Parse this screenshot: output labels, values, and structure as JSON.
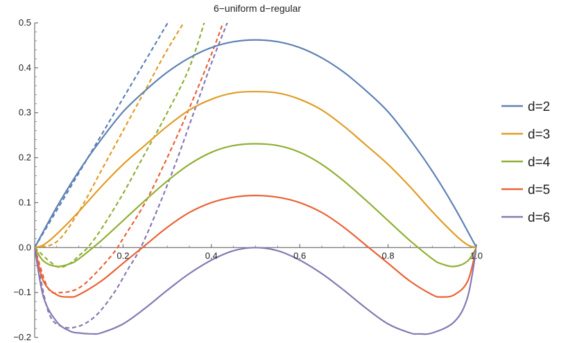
{
  "chart_data": {
    "type": "line",
    "title": "6−uniform d−regular",
    "xlabel": "",
    "ylabel": "",
    "xlim": [
      0,
      1
    ],
    "ylim": [
      -0.2,
      0.5
    ],
    "x_ticks": [
      0.2,
      0.4,
      0.6,
      0.8,
      1.0
    ],
    "x_tick_labels": [
      "0.2",
      "0.4",
      "0.6",
      "0.8",
      "1.0"
    ],
    "y_ticks": [
      -0.2,
      -0.1,
      0.0,
      0.1,
      0.2,
      0.3,
      0.4,
      0.5
    ],
    "y_tick_labels": [
      "−0.2",
      "−0.1",
      "0.0",
      "0.1",
      "0.2",
      "0.3",
      "0.4",
      "0.5"
    ],
    "legend_position": "right",
    "grid": false,
    "series": [
      {
        "name": "d=2",
        "color": "#5E81B5",
        "solid": {
          "x": [
            0,
            0.05,
            0.1,
            0.15,
            0.2,
            0.25,
            0.3,
            0.35,
            0.4,
            0.45,
            0.5,
            0.55,
            0.6,
            0.65,
            0.7,
            0.75,
            0.8,
            0.85,
            0.9,
            0.95,
            1.0
          ],
          "y": [
            0,
            0.09,
            0.17,
            0.24,
            0.302,
            0.349,
            0.39,
            0.422,
            0.445,
            0.458,
            0.462,
            0.458,
            0.445,
            0.422,
            0.39,
            0.349,
            0.302,
            0.24,
            0.17,
            0.09,
            0
          ]
        },
        "dashed": {
          "x": [
            0,
            0.05,
            0.1,
            0.15,
            0.2,
            0.25,
            0.3,
            0.31
          ],
          "y": [
            0,
            0.083,
            0.166,
            0.249,
            0.332,
            0.415,
            0.498,
            0.514
          ]
        }
      },
      {
        "name": "d=3",
        "color": "#E19C24",
        "solid": {
          "x": [
            0,
            0.02,
            0.05,
            0.1,
            0.15,
            0.2,
            0.25,
            0.3,
            0.35,
            0.4,
            0.45,
            0.5,
            0.55,
            0.6,
            0.65,
            0.7,
            0.75,
            0.8,
            0.85,
            0.9,
            0.95,
            0.98,
            1.0
          ],
          "y": [
            0,
            0.006,
            0.03,
            0.08,
            0.135,
            0.185,
            0.228,
            0.27,
            0.306,
            0.33,
            0.344,
            0.347,
            0.344,
            0.33,
            0.306,
            0.27,
            0.228,
            0.185,
            0.135,
            0.08,
            0.03,
            0.006,
            0
          ]
        },
        "dashed": {
          "x": [
            0,
            0.05,
            0.1,
            0.15,
            0.2,
            0.25,
            0.3,
            0.35
          ],
          "y": [
            0,
            0.013,
            0.08,
            0.17,
            0.26,
            0.35,
            0.44,
            0.52
          ]
        }
      },
      {
        "name": "d=4",
        "color": "#8FB032",
        "solid": {
          "x": [
            0,
            0.02,
            0.05,
            0.08,
            0.1,
            0.15,
            0.2,
            0.25,
            0.3,
            0.35,
            0.4,
            0.45,
            0.5,
            0.55,
            0.6,
            0.65,
            0.7,
            0.75,
            0.8,
            0.85,
            0.9,
            0.92,
            0.95,
            0.98,
            1.0
          ],
          "y": [
            0,
            -0.03,
            -0.042,
            -0.036,
            -0.025,
            0.015,
            0.06,
            0.105,
            0.148,
            0.185,
            0.212,
            0.227,
            0.231,
            0.227,
            0.212,
            0.185,
            0.148,
            0.105,
            0.06,
            0.015,
            -0.025,
            -0.036,
            -0.042,
            -0.03,
            0
          ]
        },
        "dashed": {
          "x": [
            0,
            0.05,
            0.08,
            0.1,
            0.12,
            0.15,
            0.2,
            0.25,
            0.3,
            0.35,
            0.39
          ],
          "y": [
            0,
            -0.042,
            -0.035,
            -0.018,
            0.0,
            0.04,
            0.12,
            0.21,
            0.3,
            0.4,
            0.52
          ]
        }
      },
      {
        "name": "d=5",
        "color": "#EB6235",
        "solid": {
          "x": [
            0,
            0.02,
            0.05,
            0.08,
            0.1,
            0.15,
            0.2,
            0.25,
            0.3,
            0.35,
            0.4,
            0.45,
            0.5,
            0.55,
            0.6,
            0.65,
            0.7,
            0.75,
            0.8,
            0.85,
            0.9,
            0.92,
            0.95,
            0.98,
            1.0
          ],
          "y": [
            0,
            -0.075,
            -0.105,
            -0.11,
            -0.105,
            -0.075,
            -0.035,
            0.005,
            0.045,
            0.078,
            0.1,
            0.112,
            0.116,
            0.112,
            0.1,
            0.078,
            0.045,
            0.005,
            -0.035,
            -0.075,
            -0.105,
            -0.11,
            -0.105,
            -0.075,
            0
          ]
        },
        "dashed": {
          "x": [
            0,
            0.03,
            0.06,
            0.1,
            0.14,
            0.18,
            0.2,
            0.25,
            0.3,
            0.35,
            0.4,
            0.43
          ],
          "y": [
            0,
            -0.09,
            -0.1,
            -0.09,
            -0.055,
            -0.01,
            0.02,
            0.1,
            0.2,
            0.31,
            0.43,
            0.51
          ]
        }
      },
      {
        "name": "d=6",
        "color": "#8778B3",
        "solid": {
          "x": [
            0,
            0.02,
            0.05,
            0.08,
            0.1,
            0.13,
            0.15,
            0.2,
            0.25,
            0.3,
            0.35,
            0.4,
            0.45,
            0.5,
            0.55,
            0.6,
            0.65,
            0.7,
            0.75,
            0.8,
            0.85,
            0.87,
            0.9,
            0.95,
            0.98,
            1.0
          ],
          "y": [
            0,
            -0.11,
            -0.165,
            -0.186,
            -0.19,
            -0.192,
            -0.19,
            -0.17,
            -0.135,
            -0.095,
            -0.058,
            -0.028,
            -0.007,
            0,
            -0.007,
            -0.028,
            -0.058,
            -0.095,
            -0.135,
            -0.17,
            -0.19,
            -0.192,
            -0.19,
            -0.165,
            -0.11,
            0
          ]
        },
        "dashed": {
          "x": [
            0,
            0.03,
            0.06,
            0.1,
            0.14,
            0.18,
            0.21,
            0.24,
            0.28,
            0.32,
            0.36,
            0.4,
            0.44
          ],
          "y": [
            0,
            -0.14,
            -0.175,
            -0.175,
            -0.15,
            -0.1,
            -0.05,
            0.0,
            0.09,
            0.19,
            0.3,
            0.41,
            0.51
          ]
        }
      }
    ]
  }
}
